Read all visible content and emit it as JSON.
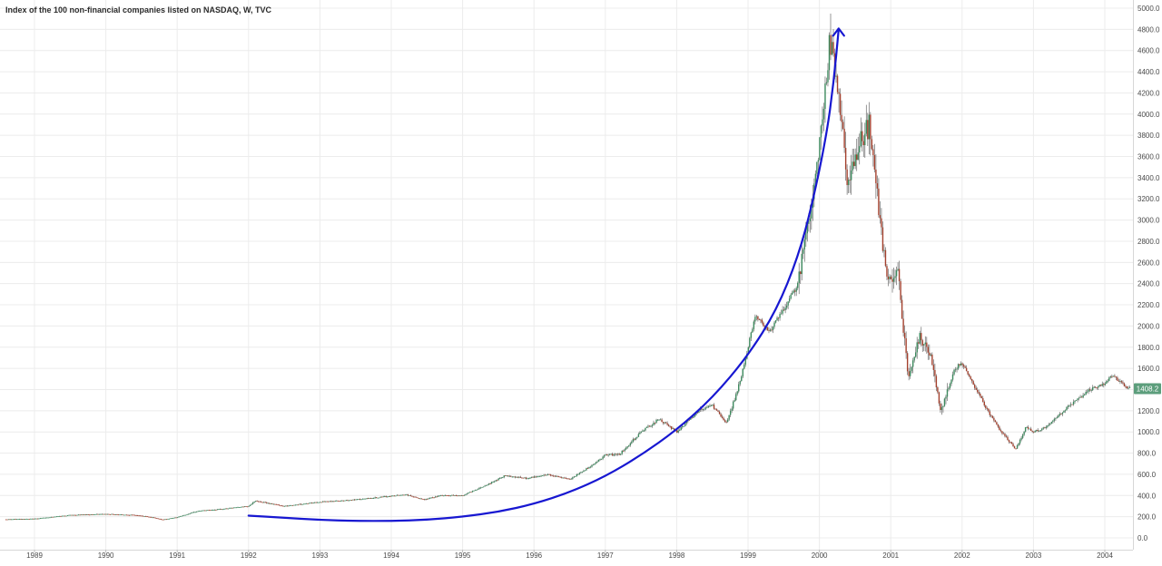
{
  "title": "Index of the 100 non-financial companies listed on NASDAQ, W, TVC",
  "colors": {
    "up": "#3d8a5e",
    "down": "#a3402d",
    "wick": "#6b6b6b",
    "grid": "#ececec",
    "curve": "#1717d1",
    "last_price_bg": "#5c9e7c"
  },
  "chart_data": {
    "type": "candlestick",
    "interval": "W",
    "x": {
      "start_year": 1988.6,
      "end_year": 2004.35
    },
    "x_ticks": [
      "1989",
      "1990",
      "1991",
      "1992",
      "1993",
      "1994",
      "1995",
      "1996",
      "1997",
      "1998",
      "1999",
      "2000",
      "2001",
      "2002",
      "2003",
      "2004"
    ],
    "y_ticks": [
      "0.0",
      "200.0",
      "400.0",
      "600.0",
      "800.0",
      "1000.0",
      "1200.0",
      "1400.0",
      "1600.0",
      "1800.0",
      "2000.0",
      "2200.0",
      "2400.0",
      "2600.0",
      "2800.0",
      "3000.0",
      "3200.0",
      "3400.0",
      "3600.0",
      "3800.0",
      "4000.0",
      "4200.0",
      "4400.0",
      "4600.0",
      "4800.0",
      "5000.0"
    ],
    "ylim": [
      -40,
      5090
    ],
    "grid": true,
    "last_price": "1408.2",
    "price_path": [
      [
        1988.6,
        175
      ],
      [
        1989.0,
        180
      ],
      [
        1989.5,
        215
      ],
      [
        1990.0,
        225
      ],
      [
        1990.4,
        215
      ],
      [
        1990.6,
        200
      ],
      [
        1990.8,
        172
      ],
      [
        1991.0,
        195
      ],
      [
        1991.3,
        255
      ],
      [
        1991.6,
        270
      ],
      [
        1992.0,
        300
      ],
      [
        1992.1,
        350
      ],
      [
        1992.5,
        300
      ],
      [
        1993.0,
        340
      ],
      [
        1993.5,
        360
      ],
      [
        1994.0,
        395
      ],
      [
        1994.2,
        410
      ],
      [
        1994.45,
        360
      ],
      [
        1994.7,
        400
      ],
      [
        1995.0,
        400
      ],
      [
        1995.4,
        520
      ],
      [
        1995.6,
        590
      ],
      [
        1995.9,
        560
      ],
      [
        1996.2,
        600
      ],
      [
        1996.5,
        550
      ],
      [
        1996.8,
        680
      ],
      [
        1997.0,
        780
      ],
      [
        1997.2,
        790
      ],
      [
        1997.5,
        1000
      ],
      [
        1997.75,
        1120
      ],
      [
        1998.0,
        1000
      ],
      [
        1998.3,
        1200
      ],
      [
        1998.5,
        1250
      ],
      [
        1998.7,
        1080
      ],
      [
        1998.9,
        1500
      ],
      [
        1999.1,
        2100
      ],
      [
        1999.3,
        1950
      ],
      [
        1999.5,
        2150
      ],
      [
        1999.7,
        2400
      ],
      [
        1999.9,
        3200
      ],
      [
        2000.0,
        3700
      ],
      [
        2000.15,
        4700
      ],
      [
        2000.25,
        4300
      ],
      [
        2000.4,
        3300
      ],
      [
        2000.55,
        3700
      ],
      [
        2000.7,
        3900
      ],
      [
        2000.8,
        3300
      ],
      [
        2000.95,
        2400
      ],
      [
        2001.1,
        2500
      ],
      [
        2001.25,
        1500
      ],
      [
        2001.4,
        1900
      ],
      [
        2001.55,
        1750
      ],
      [
        2001.7,
        1200
      ],
      [
        2001.9,
        1600
      ],
      [
        2002.0,
        1650
      ],
      [
        2002.2,
        1400
      ],
      [
        2002.4,
        1150
      ],
      [
        2002.55,
        1000
      ],
      [
        2002.75,
        840
      ],
      [
        2002.9,
        1050
      ],
      [
        2003.0,
        1000
      ],
      [
        2003.2,
        1050
      ],
      [
        2003.5,
        1250
      ],
      [
        2003.8,
        1400
      ],
      [
        2004.0,
        1450
      ],
      [
        2004.1,
        1530
      ],
      [
        2004.3,
        1420
      ],
      [
        2004.35,
        1408
      ]
    ],
    "annotation_curve": [
      [
        1992.0,
        210
      ],
      [
        1992.5,
        190
      ],
      [
        1993.0,
        170
      ],
      [
        1993.5,
        160
      ],
      [
        1994.0,
        160
      ],
      [
        1994.5,
        170
      ],
      [
        1995.0,
        200
      ],
      [
        1995.5,
        245
      ],
      [
        1996.0,
        320
      ],
      [
        1996.5,
        430
      ],
      [
        1997.0,
        580
      ],
      [
        1997.5,
        780
      ],
      [
        1998.0,
        1020
      ],
      [
        1998.5,
        1320
      ],
      [
        1999.0,
        1720
      ],
      [
        1999.4,
        2150
      ],
      [
        1999.7,
        2650
      ],
      [
        1999.9,
        3150
      ],
      [
        2000.1,
        3800
      ],
      [
        2000.2,
        4300
      ],
      [
        2000.27,
        4800
      ]
    ]
  }
}
